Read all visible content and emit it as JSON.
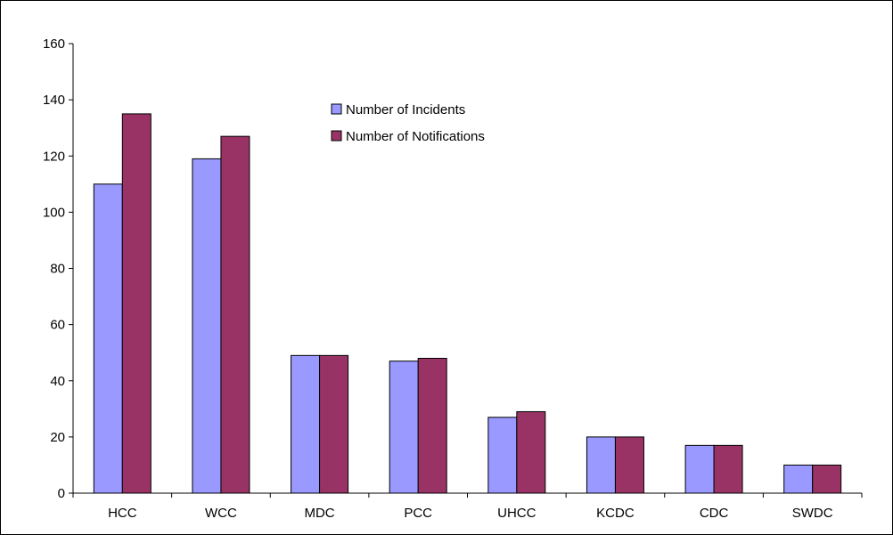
{
  "chart_data": {
    "type": "bar",
    "title": "",
    "xlabel": "",
    "ylabel": "",
    "categories": [
      "HCC",
      "WCC",
      "MDC",
      "PCC",
      "UHCC",
      "KCDC",
      "CDC",
      "SWDC"
    ],
    "series": [
      {
        "name": "Number of Incidents",
        "color": "#9999ff",
        "values": [
          110,
          119,
          49,
          47,
          27,
          20,
          17,
          10
        ]
      },
      {
        "name": "Number of Notifications",
        "color": "#993366",
        "values": [
          135,
          127,
          49,
          48,
          29,
          20,
          17,
          10
        ]
      }
    ],
    "ylim": [
      0,
      160
    ],
    "yticks": [
      0,
      20,
      40,
      60,
      80,
      100,
      120,
      140,
      160
    ],
    "grid": false,
    "legend_position": "top-center"
  }
}
